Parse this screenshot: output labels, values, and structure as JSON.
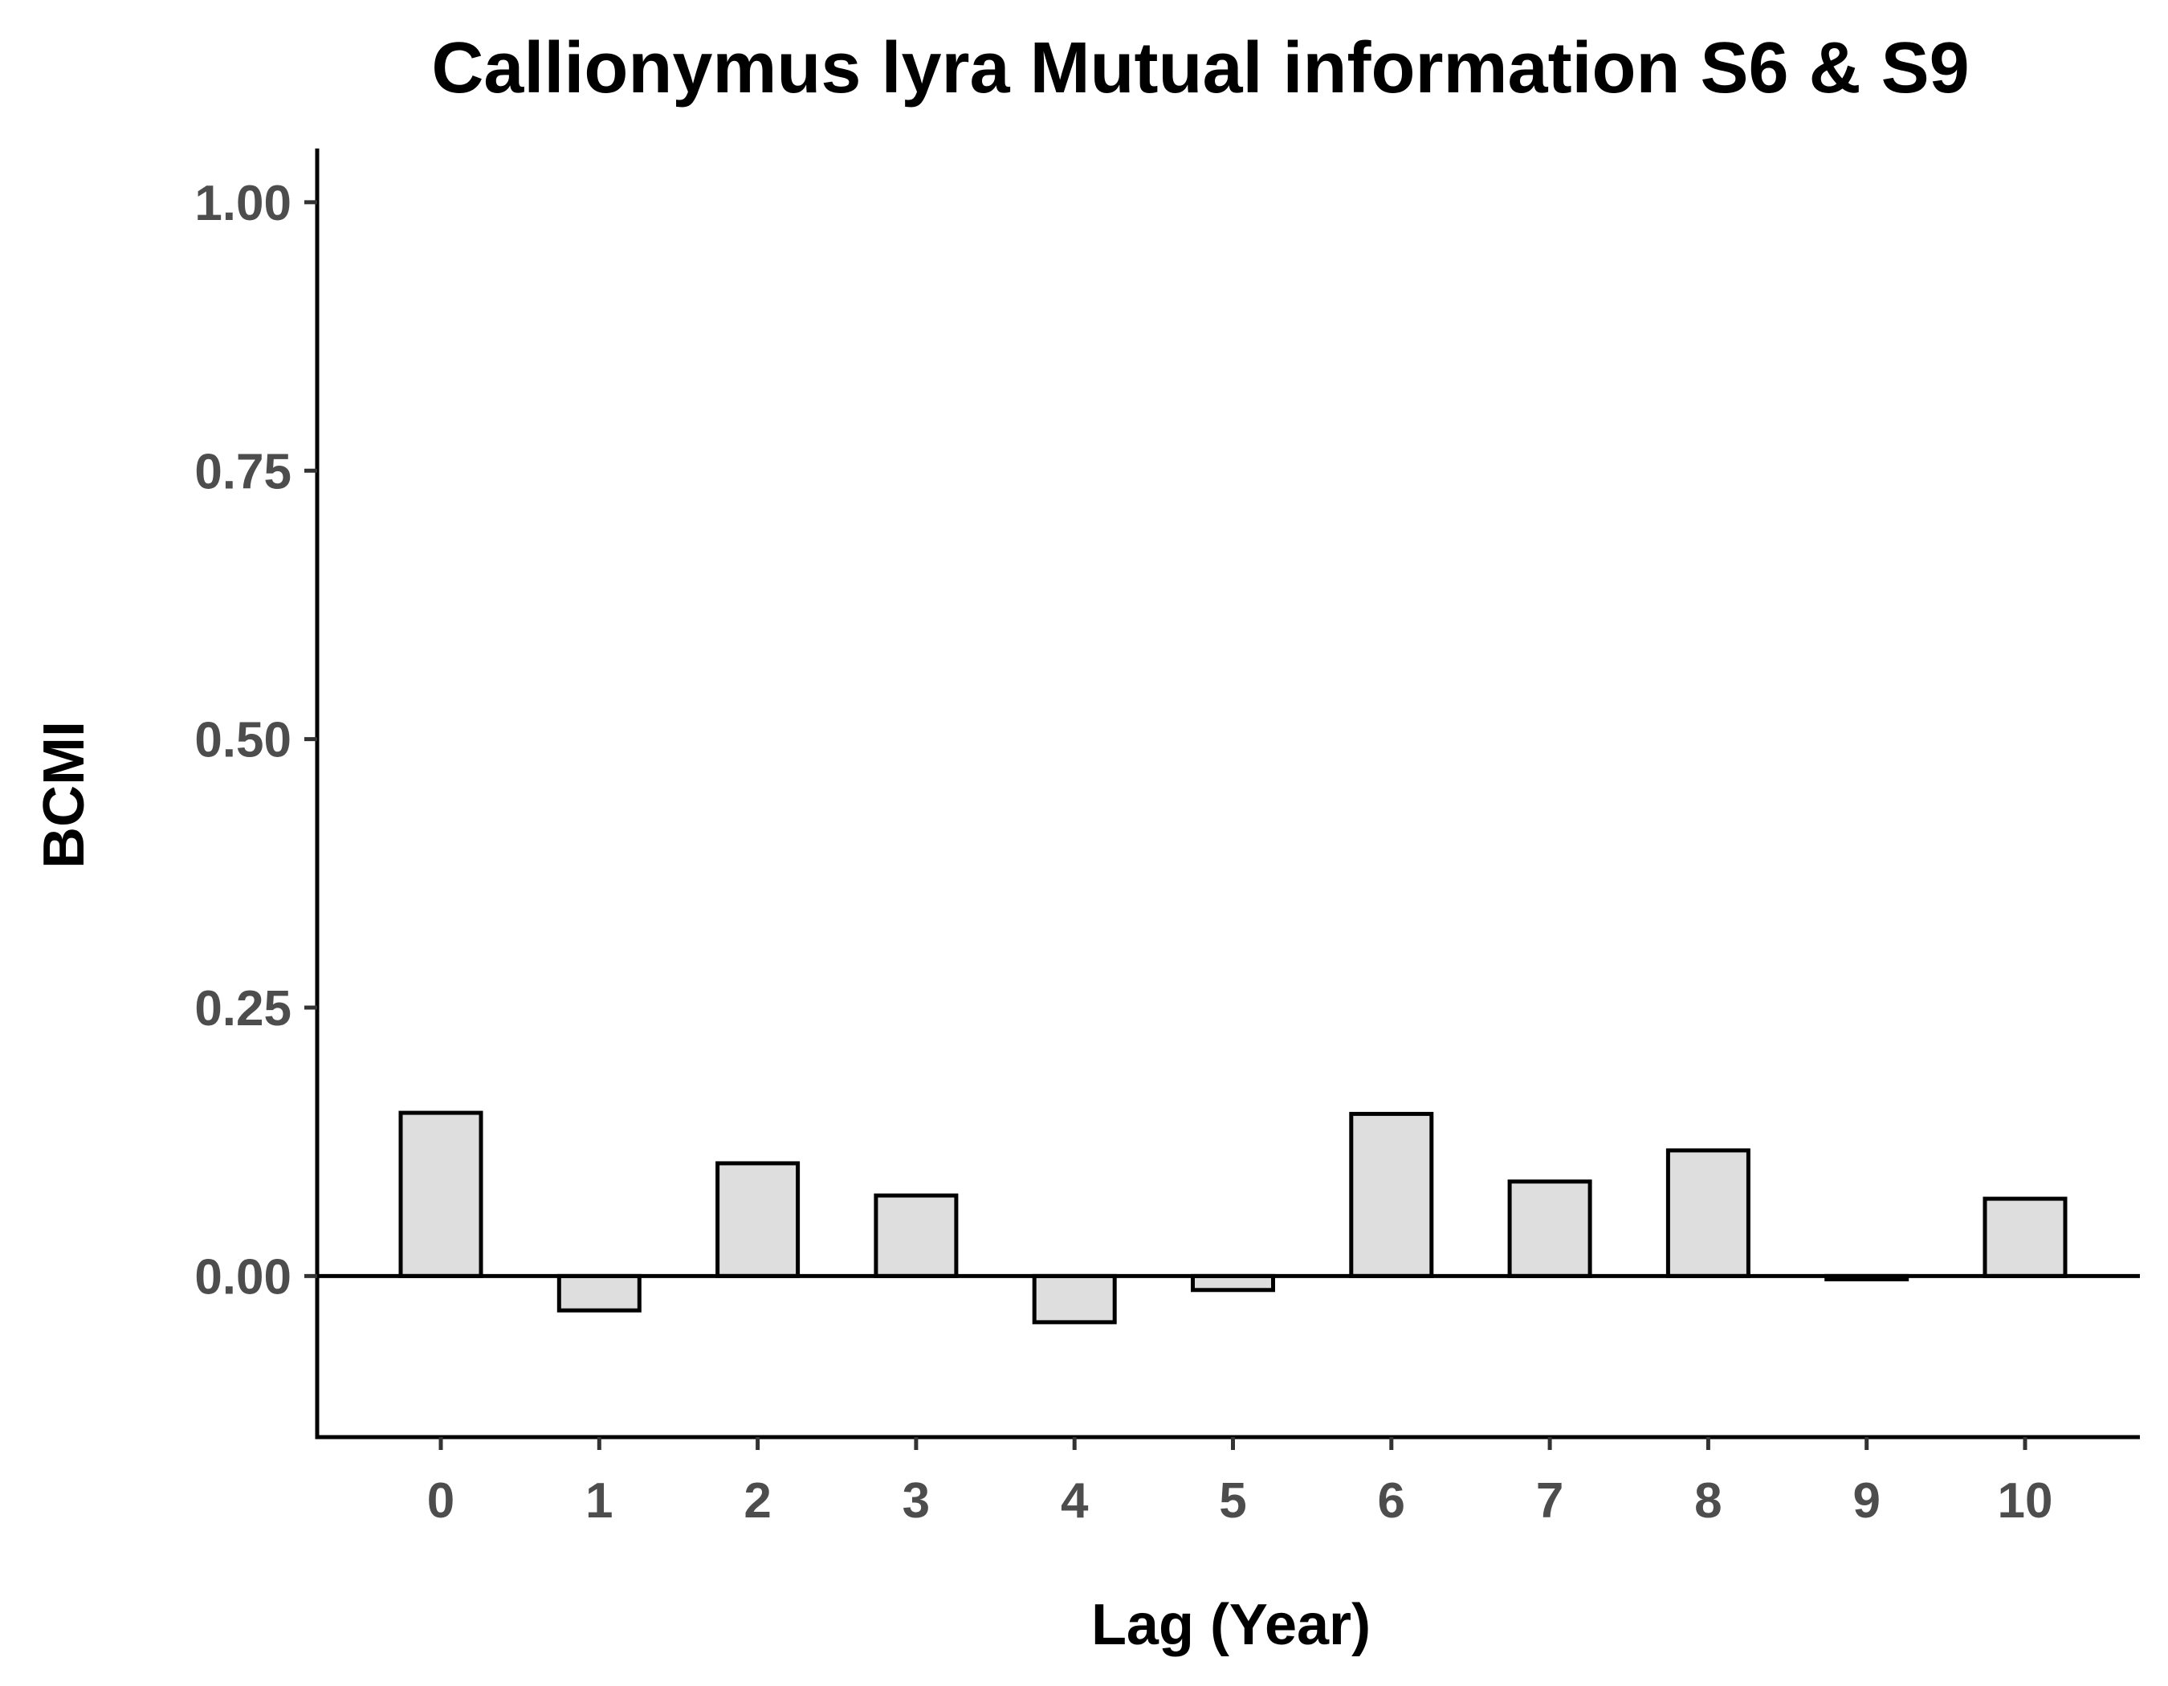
{
  "chart_data": {
    "type": "bar",
    "title": "Callionymus lyra Mutual information S6 & S9",
    "xlabel": "Lag (Year)",
    "ylabel": "BCMI",
    "categories": [
      "0",
      "1",
      "2",
      "3",
      "4",
      "5",
      "6",
      "7",
      "8",
      "9",
      "10"
    ],
    "values": [
      0.152,
      -0.032,
      0.105,
      0.075,
      -0.043,
      -0.013,
      0.151,
      0.088,
      0.117,
      -0.003,
      0.072
    ],
    "ylim": [
      -0.15,
      1.05
    ],
    "yticks": [
      1.0,
      0.75,
      0.5,
      0.25,
      0.0
    ],
    "ytick_labels": [
      "1.00",
      "0.75",
      "0.50",
      "0.25",
      "0.00"
    ],
    "bar_fill": "#dedede",
    "bar_stroke": "#000000",
    "grid": false,
    "legend": "none",
    "reference_line": 0
  }
}
